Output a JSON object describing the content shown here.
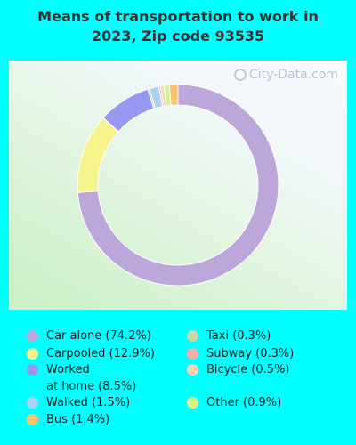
{
  "title_line1": "Means of transportation to work in",
  "title_line2": "2023, Zip code 93535",
  "watermark": "City-Data.com",
  "legend": [
    {
      "label": "Car alone (74.2%)",
      "color": "#bca7da"
    },
    {
      "label": "Carpooled (12.9%)",
      "color": "#f5f58c"
    },
    {
      "label": "Worked\nat home (8.5%)",
      "color": "#9898f0"
    },
    {
      "label": "Walked (1.5%)",
      "color": "#a8d2f2"
    },
    {
      "label": "Bus (1.4%)",
      "color": "#f5c574"
    },
    {
      "label": "Taxi (0.3%)",
      "color": "#c8d8a8"
    },
    {
      "label": "Subway (0.3%)",
      "color": "#f2b0a8"
    },
    {
      "label": "Bicycle (0.5%)",
      "color": "#f6d4b4"
    },
    {
      "label": "Other (0.9%)",
      "color": "#d4f28c"
    }
  ],
  "chart_data": {
    "type": "pie",
    "variant": "donut",
    "title": "Means of transportation to work in 2023, Zip code 93535",
    "categories": [
      "Car alone",
      "Carpooled",
      "Worked at home",
      "Taxi",
      "Walked",
      "Subway",
      "Bicycle",
      "Other",
      "Bus"
    ],
    "values": [
      74.2,
      12.9,
      8.5,
      0.3,
      1.5,
      0.3,
      0.5,
      0.9,
      1.4
    ],
    "colors": [
      "#bca7da",
      "#f5f58c",
      "#9898f0",
      "#c8d8a8",
      "#a8d2f2",
      "#f2b0a8",
      "#f6d4b4",
      "#d4f28c",
      "#f5c574"
    ],
    "start_angle_deg": 0,
    "direction": "clockwise",
    "legend_position": "bottom"
  }
}
